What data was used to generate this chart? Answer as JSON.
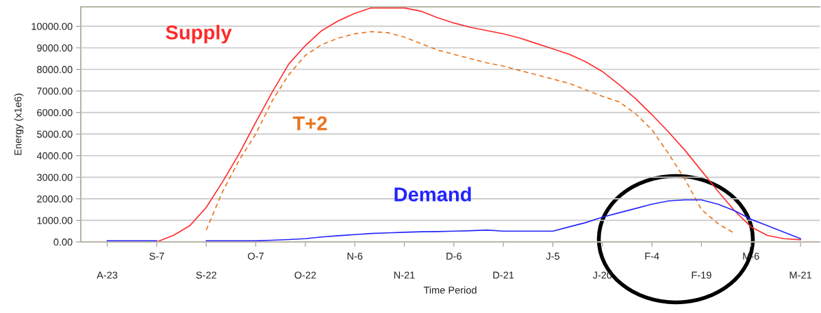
{
  "chart_data": {
    "type": "line",
    "xlabel": "Time Period",
    "ylabel": "Energy (x1e6)",
    "categories": [
      "A-23",
      null,
      null,
      "S-7",
      null,
      null,
      "S-22",
      null,
      null,
      "O-7",
      null,
      null,
      "O-22",
      null,
      null,
      "N-6",
      null,
      null,
      "N-21",
      null,
      null,
      "D-6",
      null,
      null,
      "D-21",
      null,
      null,
      "J-5",
      null,
      null,
      "J-20",
      null,
      null,
      "F-4",
      null,
      null,
      "F-19",
      null,
      null,
      "M-6",
      null,
      null,
      "M-21"
    ],
    "ylim": [
      0,
      10900
    ],
    "yticks": [
      {
        "value": 0,
        "label": "0.00"
      },
      {
        "value": 1000,
        "label": "1000.00"
      },
      {
        "value": 2000,
        "label": "2000.00"
      },
      {
        "value": 3000,
        "label": "3000.00"
      },
      {
        "value": 4000,
        "label": "4000.00"
      },
      {
        "value": 5000,
        "label": "5000.00"
      },
      {
        "value": 6000,
        "label": "6000.00"
      },
      {
        "value": 7000,
        "label": "7000.00"
      },
      {
        "value": 8000,
        "label": "8000.00"
      },
      {
        "value": 9000,
        "label": "9000.00"
      },
      {
        "value": 10000,
        "label": "10000.00"
      }
    ],
    "grid": "y",
    "legend": false,
    "marker": "none",
    "series": [
      {
        "name": "Supply",
        "color": "#ff2a2a",
        "line_style": "solid",
        "values": [
          null,
          null,
          0,
          0,
          300,
          750,
          1600,
          2800,
          4100,
          5550,
          6950,
          8250,
          9100,
          9800,
          10250,
          10600,
          10850,
          10850,
          10850,
          10700,
          10400,
          10150,
          9950,
          9800,
          9650,
          9450,
          9200,
          8950,
          8700,
          8350,
          7900,
          7300,
          6650,
          5900,
          5100,
          4250,
          3300,
          2350,
          1450,
          700,
          300,
          150,
          100
        ]
      },
      {
        "name": "T+2",
        "color": "#e8731c",
        "line_style": "dashed",
        "values": [
          null,
          null,
          null,
          null,
          null,
          null,
          550,
          2350,
          3800,
          5000,
          6550,
          7750,
          8650,
          9150,
          9450,
          9650,
          9750,
          9700,
          9500,
          9200,
          8900,
          8700,
          8500,
          8300,
          8150,
          7950,
          7750,
          7550,
          7350,
          7050,
          6750,
          6500,
          5950,
          5200,
          4100,
          2900,
          1500,
          850,
          400,
          null,
          null,
          null,
          null
        ]
      },
      {
        "name": "Demand",
        "color": "#2323ff",
        "line_style": "solid",
        "values": [
          50,
          50,
          50,
          50,
          null,
          null,
          50,
          50,
          50,
          50,
          80,
          110,
          150,
          230,
          290,
          340,
          390,
          420,
          450,
          470,
          480,
          500,
          520,
          550,
          500,
          500,
          500,
          500,
          700,
          900,
          1150,
          1350,
          1550,
          1750,
          1900,
          1950,
          1950,
          1750,
          1450,
          1050,
          750,
          450,
          150
        ]
      }
    ]
  }
}
